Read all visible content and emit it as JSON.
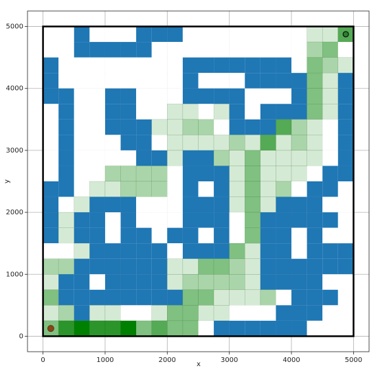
{
  "chart_data": {
    "type": "grid",
    "x_label": "x",
    "y_label": "y",
    "xlim": [
      -250,
      5250
    ],
    "ylim": [
      -250,
      5250
    ],
    "xticks": [
      0,
      1000,
      2000,
      3000,
      4000,
      5000
    ],
    "yticks": [
      0,
      1000,
      2000,
      3000,
      4000,
      5000
    ],
    "grid": true,
    "extent": [
      0,
      5000
    ],
    "wall_color": "#1f77b4",
    "visit_color": "#008000",
    "start": [
      125,
      125
    ],
    "start_color": "#8b4513",
    "goal": [
      4875,
      4875
    ],
    "goal_color": "#2e7d32",
    "walls": [
      [
        0,
        0,
        1,
        0,
        0,
        0,
        1,
        1,
        1,
        0,
        0,
        0,
        0,
        0,
        0,
        0,
        0,
        0,
        0,
        0
      ],
      [
        0,
        0,
        1,
        1,
        1,
        1,
        1,
        0,
        0,
        0,
        0,
        0,
        0,
        0,
        0,
        0,
        0,
        0,
        0,
        0
      ],
      [
        1,
        0,
        0,
        0,
        0,
        0,
        0,
        0,
        0,
        1,
        1,
        1,
        1,
        1,
        1,
        1,
        0,
        0,
        0,
        0
      ],
      [
        1,
        0,
        0,
        0,
        0,
        0,
        0,
        0,
        0,
        1,
        0,
        0,
        0,
        1,
        1,
        1,
        1,
        0,
        0,
        1
      ],
      [
        1,
        1,
        0,
        0,
        1,
        1,
        0,
        0,
        0,
        1,
        1,
        1,
        1,
        0,
        0,
        0,
        1,
        0,
        0,
        1
      ],
      [
        0,
        1,
        0,
        0,
        1,
        1,
        0,
        0,
        0,
        0,
        0,
        0,
        1,
        0,
        1,
        1,
        1,
        0,
        0,
        1
      ],
      [
        0,
        1,
        0,
        0,
        1,
        1,
        1,
        0,
        0,
        0,
        0,
        0,
        1,
        1,
        1,
        0,
        0,
        0,
        0,
        1
      ],
      [
        0,
        1,
        0,
        0,
        0,
        1,
        1,
        0,
        0,
        0,
        0,
        0,
        0,
        0,
        0,
        0,
        0,
        0,
        0,
        1
      ],
      [
        0,
        1,
        0,
        0,
        0,
        0,
        1,
        1,
        0,
        1,
        1,
        0,
        0,
        0,
        0,
        0,
        0,
        0,
        0,
        1
      ],
      [
        0,
        1,
        0,
        0,
        0,
        0,
        0,
        0,
        0,
        1,
        1,
        1,
        0,
        0,
        0,
        0,
        0,
        0,
        1,
        1
      ],
      [
        1,
        1,
        0,
        0,
        0,
        0,
        0,
        0,
        0,
        1,
        0,
        1,
        0,
        0,
        0,
        0,
        0,
        1,
        1,
        0
      ],
      [
        1,
        0,
        0,
        1,
        1,
        1,
        0,
        0,
        0,
        1,
        1,
        1,
        0,
        0,
        0,
        1,
        1,
        1,
        0,
        0
      ],
      [
        1,
        0,
        1,
        1,
        0,
        1,
        0,
        0,
        0,
        1,
        1,
        1,
        0,
        0,
        1,
        1,
        1,
        1,
        1,
        0
      ],
      [
        1,
        0,
        1,
        1,
        0,
        1,
        1,
        0,
        1,
        1,
        0,
        1,
        0,
        0,
        1,
        1,
        0,
        1,
        0,
        0
      ],
      [
        0,
        0,
        0,
        1,
        1,
        1,
        1,
        1,
        0,
        1,
        1,
        1,
        0,
        0,
        1,
        1,
        0,
        1,
        1,
        1
      ],
      [
        0,
        0,
        1,
        1,
        1,
        1,
        1,
        1,
        0,
        0,
        0,
        0,
        0,
        0,
        1,
        1,
        1,
        1,
        1,
        1
      ],
      [
        0,
        1,
        1,
        0,
        1,
        1,
        1,
        1,
        0,
        0,
        0,
        0,
        0,
        0,
        1,
        1,
        1,
        1,
        0,
        0
      ],
      [
        0,
        1,
        1,
        1,
        1,
        1,
        1,
        1,
        1,
        0,
        0,
        0,
        0,
        0,
        0,
        0,
        1,
        1,
        1,
        0
      ],
      [
        0,
        0,
        1,
        0,
        0,
        0,
        0,
        0,
        0,
        0,
        0,
        0,
        0,
        0,
        0,
        1,
        1,
        1,
        0,
        0
      ],
      [
        0,
        0,
        0,
        0,
        0,
        0,
        0,
        0,
        0,
        0,
        0,
        1,
        1,
        1,
        1,
        1,
        1,
        0,
        0,
        0
      ]
    ],
    "visits": [
      [
        0,
        0,
        0,
        0,
        0,
        0,
        0,
        0,
        0,
        0,
        0,
        0,
        0,
        0,
        0,
        0,
        0,
        1,
        1,
        4
      ],
      [
        0,
        0,
        0,
        0,
        0,
        0,
        0,
        0,
        0,
        0,
        0,
        0,
        0,
        0,
        0,
        0,
        0,
        2,
        3,
        0
      ],
      [
        0,
        0,
        0,
        0,
        0,
        0,
        0,
        0,
        0,
        0,
        0,
        0,
        0,
        0,
        0,
        0,
        0,
        3,
        2,
        1
      ],
      [
        0,
        0,
        0,
        0,
        0,
        0,
        0,
        0,
        0,
        0,
        0,
        0,
        0,
        0,
        0,
        0,
        0,
        3,
        1,
        0
      ],
      [
        0,
        0,
        0,
        0,
        0,
        0,
        0,
        0,
        0,
        0,
        0,
        0,
        0,
        0,
        0,
        0,
        0,
        3,
        1,
        0
      ],
      [
        0,
        0,
        0,
        0,
        0,
        0,
        0,
        0,
        1,
        1,
        0,
        1,
        0,
        0,
        0,
        0,
        0,
        3,
        1,
        0
      ],
      [
        0,
        0,
        0,
        0,
        0,
        0,
        0,
        1,
        1,
        2,
        2,
        0,
        0,
        0,
        0,
        4,
        2,
        1,
        0,
        0
      ],
      [
        0,
        0,
        0,
        0,
        0,
        0,
        0,
        0,
        1,
        1,
        1,
        1,
        2,
        1,
        4,
        1,
        2,
        1,
        0,
        0
      ],
      [
        0,
        0,
        0,
        0,
        0,
        0,
        0,
        0,
        1,
        0,
        0,
        2,
        1,
        3,
        1,
        1,
        1,
        1,
        0,
        0
      ],
      [
        0,
        0,
        0,
        0,
        2,
        2,
        2,
        2,
        0,
        0,
        0,
        0,
        1,
        3,
        1,
        1,
        1,
        0,
        0,
        0
      ],
      [
        0,
        0,
        0,
        1,
        1,
        2,
        2,
        2,
        0,
        0,
        0,
        0,
        1,
        3,
        1,
        2,
        0,
        0,
        0,
        0
      ],
      [
        0,
        0,
        1,
        0,
        0,
        0,
        0,
        0,
        0,
        0,
        0,
        0,
        1,
        3,
        1,
        0,
        0,
        0,
        0,
        0
      ],
      [
        0,
        1,
        0,
        0,
        0,
        0,
        0,
        0,
        0,
        0,
        0,
        0,
        0,
        3,
        0,
        0,
        0,
        0,
        0,
        0
      ],
      [
        0,
        1,
        0,
        0,
        0,
        0,
        0,
        0,
        0,
        0,
        0,
        0,
        0,
        3,
        0,
        0,
        0,
        0,
        0,
        0
      ],
      [
        0,
        0,
        1,
        0,
        0,
        0,
        0,
        0,
        0,
        0,
        0,
        0,
        3,
        1,
        0,
        0,
        0,
        0,
        0,
        0
      ],
      [
        2,
        2,
        0,
        0,
        0,
        0,
        0,
        0,
        1,
        1,
        3,
        3,
        2,
        1,
        0,
        0,
        0,
        0,
        0,
        0
      ],
      [
        1,
        0,
        0,
        0,
        0,
        0,
        0,
        0,
        1,
        2,
        2,
        2,
        2,
        1,
        0,
        0,
        0,
        0,
        0,
        0
      ],
      [
        3,
        0,
        0,
        0,
        0,
        0,
        0,
        0,
        0,
        3,
        3,
        1,
        1,
        1,
        2,
        0,
        0,
        0,
        0,
        0
      ],
      [
        1,
        2,
        0,
        1,
        1,
        0,
        0,
        1,
        3,
        3,
        1,
        1,
        0,
        0,
        0,
        0,
        0,
        0,
        0,
        0
      ],
      [
        3,
        5,
        6,
        5,
        5,
        6,
        3,
        4,
        3,
        3,
        0,
        0,
        0,
        0,
        0,
        0,
        0,
        0,
        0,
        0
      ]
    ]
  }
}
